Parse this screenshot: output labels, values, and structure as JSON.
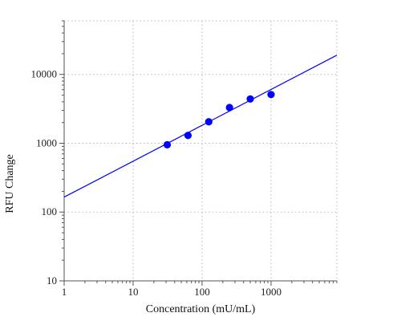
{
  "chart_data": {
    "type": "scatter",
    "xlabel": "Concentration (mU/mL)",
    "ylabel": "RFU Change",
    "x_scale": "log",
    "y_scale": "log",
    "xlim": [
      1,
      9000
    ],
    "ylim": [
      10,
      60000
    ],
    "x_ticks": [
      1,
      10,
      100,
      1000
    ],
    "x_tick_labels": [
      "1",
      "10",
      "100",
      "1000"
    ],
    "y_ticks": [
      10,
      100,
      1000,
      10000
    ],
    "y_tick_labels": [
      "10",
      "100",
      "1000",
      "10000"
    ],
    "grid": true,
    "series": [
      {
        "kind": "points",
        "color": "#0000ff",
        "points": [
          {
            "x": 31.25,
            "y": 950
          },
          {
            "x": 62.5,
            "y": 1300
          },
          {
            "x": 125,
            "y": 2050
          },
          {
            "x": 250,
            "y": 3300
          },
          {
            "x": 500,
            "y": 4400
          },
          {
            "x": 1000,
            "y": 5100
          }
        ]
      },
      {
        "kind": "fit-line",
        "color": "#0000ff",
        "points": [
          {
            "x": 1,
            "y": 165
          },
          {
            "x": 9000,
            "y": 19000
          }
        ]
      }
    ]
  }
}
